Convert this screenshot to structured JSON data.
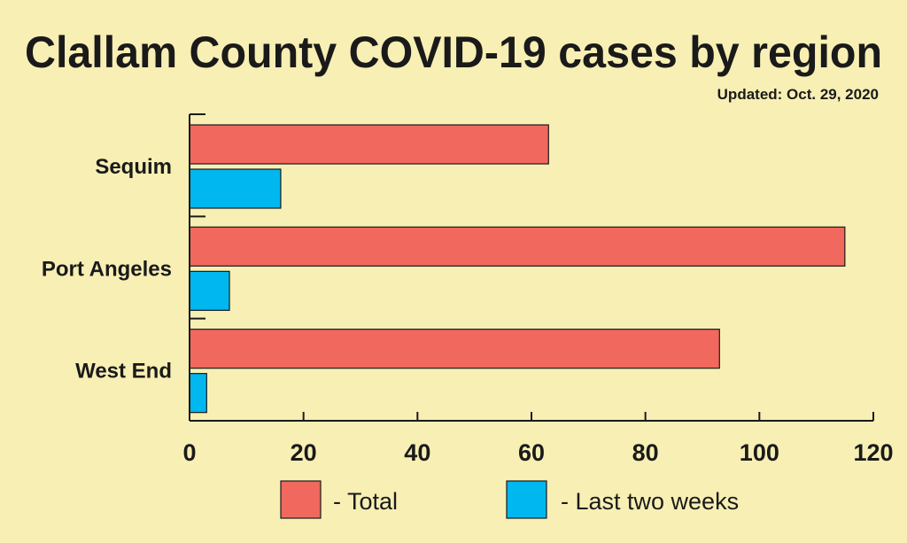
{
  "chart_data": {
    "type": "bar",
    "orientation": "horizontal",
    "title": "Clallam County COVID-19 cases by region",
    "subtitle": "Updated: Oct. 29, 2020",
    "categories": [
      "Sequim",
      "Port Angeles",
      "West End"
    ],
    "series": [
      {
        "name": "Total",
        "legend_label": "- Total",
        "color": "#f0685e",
        "values": [
          63,
          115,
          93
        ]
      },
      {
        "name": "Last two weeks",
        "legend_label": "- Last two weeks",
        "color": "#00b7ef",
        "values": [
          16,
          7,
          3
        ]
      }
    ],
    "xlim": [
      0,
      120
    ],
    "xticks": [
      0,
      20,
      40,
      60,
      80,
      100,
      120
    ],
    "xlabel": "",
    "ylabel": "",
    "grid": false,
    "legend": "bottom"
  }
}
